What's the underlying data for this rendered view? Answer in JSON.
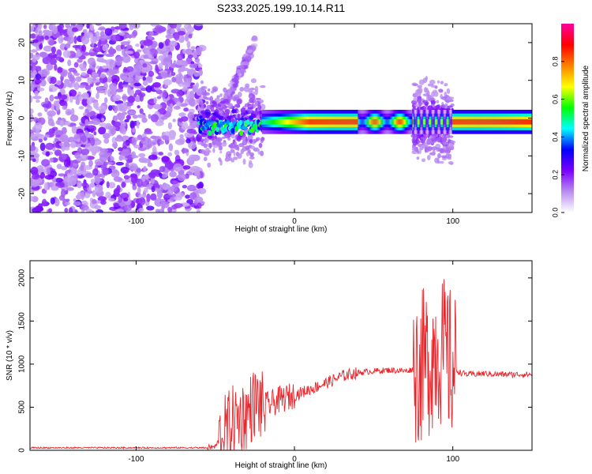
{
  "title": "S233.2025.199.10.14.R11",
  "chart_data": [
    {
      "type": "heatmap",
      "xlabel": "Height of straight line (km)",
      "ylabel": "Frequency (Hz)",
      "xlim": [
        -167,
        150
      ],
      "ylim": [
        -25,
        25
      ],
      "x_ticks": [
        -100,
        0,
        100
      ],
      "y_ticks": [
        -20,
        -10,
        0,
        10,
        20
      ],
      "colorbar": {
        "label": "Normalized spectral amplitude",
        "range": [
          0,
          1
        ],
        "ticks": [
          0.0,
          0.2,
          0.4,
          0.6,
          0.8
        ],
        "colors": [
          "#ffffff",
          "#b98cf0",
          "#7a00ff",
          "#0000ff",
          "#00ffff",
          "#00ff00",
          "#ffff00",
          "#ff8000",
          "#ff0000",
          "#ff00a0"
        ]
      },
      "features": {
        "noise_region_x": [
          -167,
          -58
        ],
        "main_line": {
          "x_range": [
            -20,
            150
          ],
          "freq_hz": -1,
          "peak_amplitude": 0.85
        },
        "dispersive_branch": {
          "x_range": [
            -55,
            -25
          ],
          "freq_range_hz": [
            -5,
            20
          ]
        },
        "burst_regions_x": [
          [
            -60,
            -20
          ],
          [
            75,
            100
          ]
        ]
      }
    },
    {
      "type": "line",
      "xlabel": "Height of straight line (km)",
      "ylabel": "SNR (10 * v/v)",
      "xlim": [
        -167,
        150
      ],
      "ylim": [
        0,
        2200
      ],
      "x_ticks": [
        -100,
        0,
        100
      ],
      "y_ticks": [
        0,
        500,
        1000,
        1500,
        2000
      ],
      "series": [
        {
          "color": "#e8252b",
          "values_summary": [
            [
              -167,
              20
            ],
            [
              -60,
              20
            ],
            [
              -50,
              40
            ],
            [
              -45,
              200
            ],
            [
              -40,
              330
            ],
            [
              -35,
              380
            ],
            [
              -30,
              420
            ],
            [
              -25,
              560
            ],
            [
              -20,
              500
            ],
            [
              -10,
              580
            ],
            [
              0,
              640
            ],
            [
              10,
              710
            ],
            [
              20,
              780
            ],
            [
              30,
              860
            ],
            [
              40,
              900
            ],
            [
              50,
              920
            ],
            [
              60,
              930
            ],
            [
              70,
              920
            ],
            [
              75,
              940
            ],
            [
              80,
              970
            ],
            [
              85,
              1050
            ],
            [
              90,
              1200
            ],
            [
              95,
              1100
            ],
            [
              100,
              950
            ],
            [
              105,
              900
            ],
            [
              110,
              880
            ],
            [
              120,
              890
            ],
            [
              130,
              880
            ],
            [
              140,
              880
            ],
            [
              150,
              880
            ]
          ]
        }
      ]
    }
  ]
}
